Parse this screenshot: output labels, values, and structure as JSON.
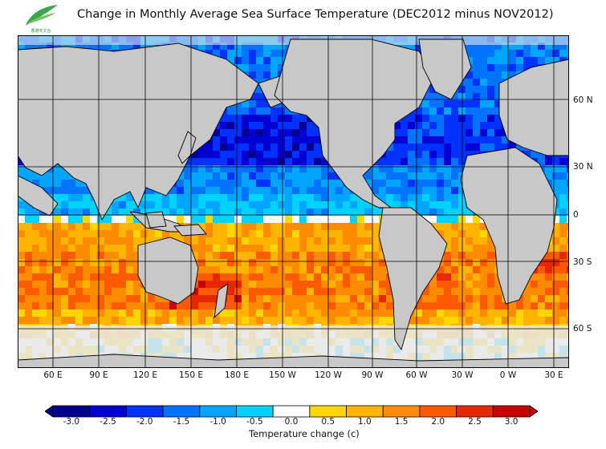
{
  "title": "Change in Monthly Average Sea Surface Temperature (DEC2012 minus NOV2012)",
  "logo": {
    "icon": "leaf-logo-icon",
    "text": "香港天文台"
  },
  "map": {
    "lat_labels": [
      "60 N",
      "30 N",
      "0",
      "30 S",
      "60 S"
    ],
    "lon_labels": [
      "60 E",
      "90 E",
      "120 E",
      "150 E",
      "180 E",
      "150 W",
      "120 W",
      "90 W",
      "60 W",
      "30 W",
      "0 W",
      "30 E"
    ],
    "colors": {
      "land": "#c8c8c8",
      "ice": "#e6e6e6",
      "coast": "#000000",
      "grid": "#000000"
    }
  },
  "colorbar": {
    "title": "Temperature change  (c)",
    "ticks": [
      "-3.0",
      "-2.5",
      "-2.0",
      "-1.5",
      "-1.0",
      "-0.5",
      "0.0",
      "0.5",
      "1.0",
      "1.5",
      "2.0",
      "2.5",
      "3.0"
    ],
    "colors": [
      "#00008c",
      "#0000d2",
      "#0032ff",
      "#0073ff",
      "#00a5ff",
      "#00d2ff",
      "#ffffff",
      "#ffd700",
      "#ffb400",
      "#ff8c00",
      "#ff5a00",
      "#e62800",
      "#c80000"
    ]
  }
}
